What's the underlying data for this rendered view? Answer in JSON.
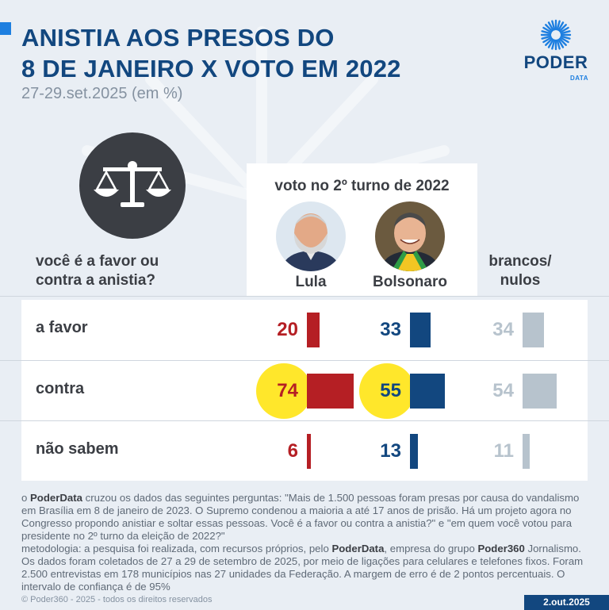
{
  "header": {
    "title_line1": "ANISTIA AOS PRESOS DO",
    "title_line2": "8 DE JANEIRO X VOTO EM 2022",
    "subtitle": "27-29.set.2025 (em %)"
  },
  "logo": {
    "name": "PODER",
    "sub": "DATA"
  },
  "icon": "scales-of-justice-icon",
  "question": {
    "line1": "você é a favor ou",
    "line2": "contra a anistia?"
  },
  "panel_title": "voto no 2º turno de 2022",
  "colors": {
    "lula": "#b51f24",
    "bolsonaro": "#12477f",
    "brancos": "#b7c3cd",
    "highlight": "#ffe72b"
  },
  "chart_data": {
    "type": "table",
    "title": "ANISTIA AOS PRESOS DO 8 DE JANEIRO X VOTO EM 2022",
    "columns": [
      "Lula",
      "Bolsonaro",
      "brancos/ nulos"
    ],
    "columns_display": {
      "lula": "Lula",
      "bolsonaro": "Bolsonaro",
      "brancos_line1": "brancos/",
      "brancos_line2": "nulos"
    },
    "rows": [
      {
        "label": "a favor",
        "values": [
          20,
          33,
          34
        ],
        "highlight": [
          false,
          false,
          false
        ]
      },
      {
        "label": "contra",
        "values": [
          74,
          55,
          54
        ],
        "highlight": [
          true,
          true,
          false
        ]
      },
      {
        "label": "não sabem",
        "values": [
          6,
          13,
          11
        ],
        "highlight": [
          false,
          false,
          false
        ]
      }
    ],
    "unit": "%"
  },
  "footer": {
    "brand": "PoderData",
    "brand2": "Poder360",
    "p1_pre": "o ",
    "p1_post": " cruzou os dados das seguintes perguntas: \"Mais de 1.500 pessoas foram presas por causa do vandalismo em Brasília em 8 de janeiro de 2023. O Supremo condenou a maioria a até 17 anos de prisão. Há um projeto agora no Congresso propondo anistiar e soltar essas pessoas. Você é a favor ou contra a anistia?\" e \"em quem você votou para presidente no 2º turno da eleição de 2022?\"",
    "p2_pre": "metodologia: a pesquisa foi realizada, com recursos próprios, pelo ",
    "p2_mid": ", empresa do grupo ",
    "p2_post": " Jornalismo. Os dados foram coletados de 27 a 29 de setembro de 2025, por meio de ligações para celulares e telefones fixos. Foram 2.500 entrevistas em 178 municípios nas 27 unidades da Federação. A margem de erro é de 2 pontos percentuais. O intervalo de confiança é de 95%",
    "copyright": "© Poder360 - 2025 - todos os direitos reservados",
    "date": "2.out.2025"
  }
}
